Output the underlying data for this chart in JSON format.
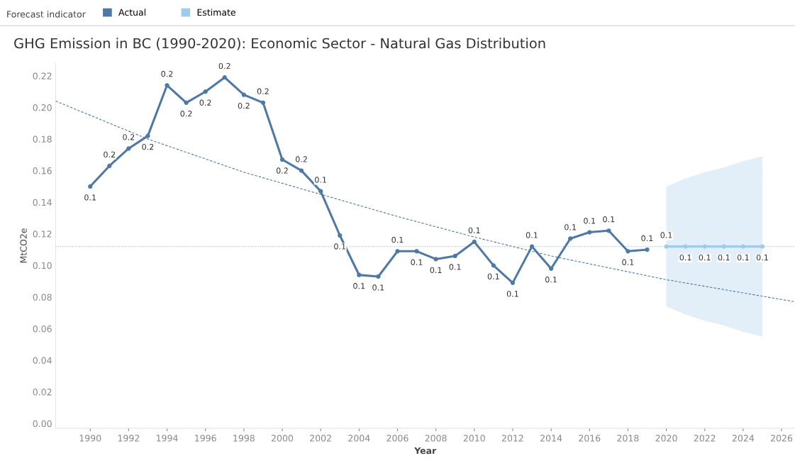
{
  "chart_data": {
    "type": "line",
    "title": "GHG Emission in BC (1990-2020): Economic Sector - Natural Gas Distribution",
    "xlabel": "Year",
    "ylabel": "MtCO2e",
    "legend_title": "Forecast indicator",
    "legend": "top left",
    "xlim": [
      1988.2,
      2026.7
    ],
    "xticks": [
      1990,
      1992,
      1994,
      1996,
      1998,
      2000,
      2002,
      2004,
      2006,
      2008,
      2010,
      2012,
      2014,
      2016,
      2018,
      2020,
      2022,
      2024,
      2026
    ],
    "ylim": [
      -0.003,
      0.228
    ],
    "yticks": [
      {
        "value": 0,
        "label": "0.00"
      },
      {
        "value": 0.02,
        "label": "0.02"
      },
      {
        "value": 0.04,
        "label": "0.04"
      },
      {
        "value": 0.06,
        "label": "0.06"
      },
      {
        "value": 0.08,
        "label": "0.08"
      },
      {
        "value": 0.1,
        "label": "0.10"
      },
      {
        "value": 0.12,
        "label": "0.12"
      },
      {
        "value": 0.14,
        "label": "0.14"
      },
      {
        "value": 0.16,
        "label": "0.16"
      },
      {
        "value": 0.18,
        "label": "0.18"
      },
      {
        "value": 0.2,
        "label": "0.20"
      },
      {
        "value": 0.22,
        "label": "0.22"
      }
    ],
    "grid": false,
    "marker": "circle",
    "ref_lines": [
      {
        "axis": "y",
        "value": 0.112,
        "color": "#a0cbe8",
        "line_style": "dotted"
      }
    ],
    "series": [
      {
        "name": "Actual",
        "color": "#4e79a7",
        "x": [
          1990,
          1991,
          1992,
          1993,
          1994,
          1995,
          1996,
          1997,
          1998,
          1999,
          2000,
          2001,
          2002,
          2003,
          2004,
          2005,
          2006,
          2007,
          2008,
          2009,
          2010,
          2011,
          2012,
          2013,
          2014,
          2015,
          2016,
          2017,
          2018,
          2019
        ],
        "values": [
          0.15,
          0.163,
          0.174,
          0.182,
          0.214,
          0.203,
          0.21,
          0.219,
          0.208,
          0.203,
          0.167,
          0.16,
          0.147,
          0.119,
          0.094,
          0.093,
          0.109,
          0.109,
          0.104,
          0.106,
          0.115,
          0.1,
          0.089,
          0.112,
          0.098,
          0.117,
          0.121,
          0.122,
          0.109,
          0.11
        ],
        "value_labels": [
          "0.1",
          "0.2",
          "0.2",
          "0.2",
          "0.2",
          "0.2",
          "0.2",
          "0.2",
          "0.2",
          "0.2",
          "0.2",
          "0.2",
          "0.1",
          "0.1",
          "0.1",
          "0.1",
          "0.1",
          "0.1",
          "0.1",
          "0.1",
          "0.1",
          "0.1",
          "0.1",
          "0.1",
          "0.1",
          "0.1",
          "0.1",
          "0.1",
          "0.1",
          "0.1"
        ]
      },
      {
        "name": "Estimate",
        "color": "#a0cbe8",
        "x": [
          2020,
          2021,
          2022,
          2023,
          2024,
          2025
        ],
        "values": [
          0.112,
          0.112,
          0.112,
          0.112,
          0.112,
          0.112
        ],
        "lower": [
          0.074,
          0.069,
          0.065,
          0.062,
          0.058,
          0.055
        ],
        "upper": [
          0.15,
          0.155,
          0.159,
          0.162,
          0.166,
          0.169
        ],
        "value_labels": [
          "0.1",
          "0.1",
          "0.1",
          "0.1",
          "0.1",
          "0.1"
        ]
      },
      {
        "type": "line",
        "color": "#4e79a7",
        "line_style": "dashed",
        "marker": "none",
        "x": [
          1988.2,
          1993,
          1998,
          2002,
          2006,
          2010,
          2014,
          2020,
          2026.7
        ],
        "values": [
          0.204,
          0.18,
          0.159,
          0.145,
          0.131,
          0.118,
          0.106,
          0.091,
          0.077
        ]
      }
    ]
  }
}
